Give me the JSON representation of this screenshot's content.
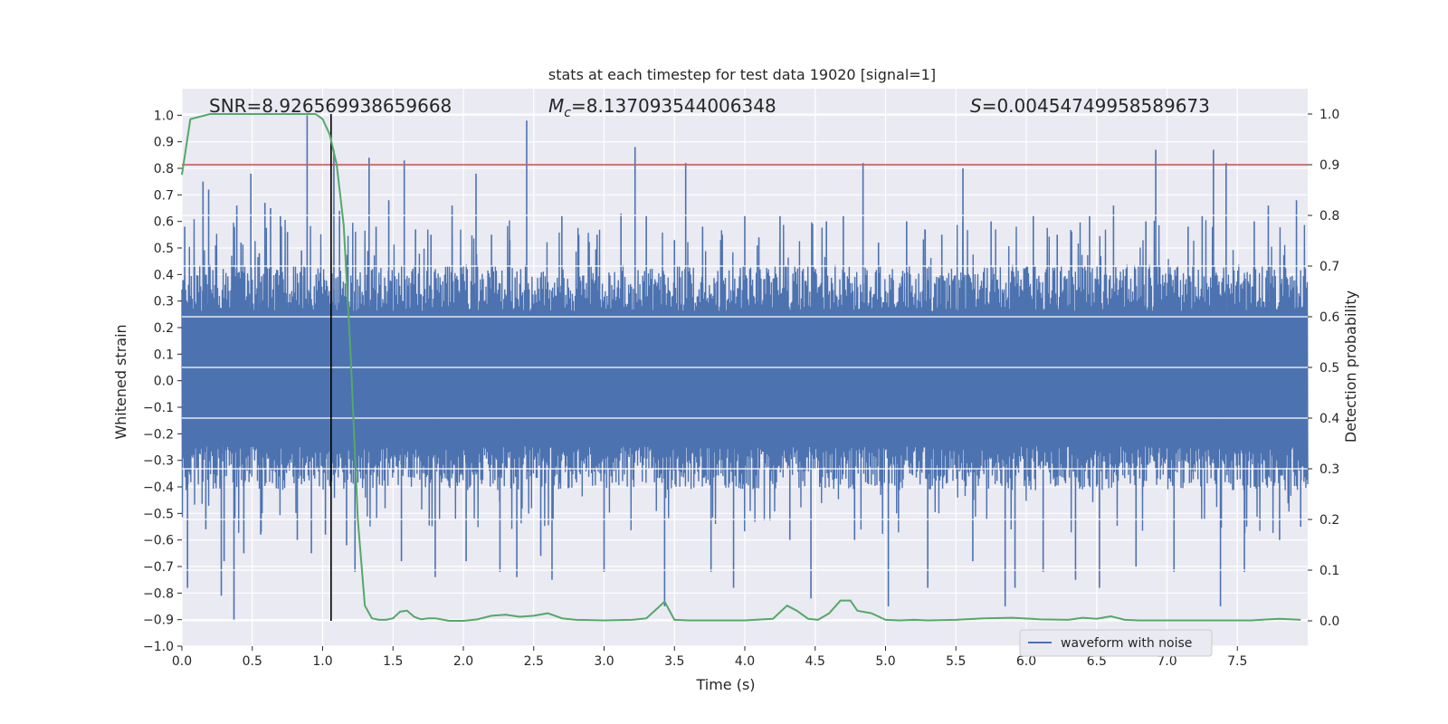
{
  "chart_data": {
    "type": "line",
    "title": "stats at each timestep for test data 19020 [signal=1]",
    "xlabel": "Time (s)",
    "ylabel": "Whitened strain",
    "y2label": "Detection probability",
    "xlim": [
      0.0,
      8.0
    ],
    "ylim": [
      -1.0,
      1.1
    ],
    "y2lim": [
      -0.05,
      1.05
    ],
    "x_ticks": [
      0.0,
      0.5,
      1.0,
      1.5,
      2.0,
      2.5,
      3.0,
      3.5,
      4.0,
      4.5,
      5.0,
      5.5,
      6.0,
      6.5,
      7.0,
      7.5
    ],
    "x_tick_labels": [
      "0.0",
      "0.5",
      "1.0",
      "1.5",
      "2.0",
      "2.5",
      "3.0",
      "3.5",
      "4.0",
      "4.5",
      "5.0",
      "5.5",
      "6.0",
      "6.5",
      "7.0",
      "7.5"
    ],
    "y_ticks": [
      1.0,
      0.9,
      0.8,
      0.7,
      0.6,
      0.5,
      0.4,
      0.3,
      0.2,
      0.1,
      0.0,
      -0.1,
      -0.2,
      -0.3,
      -0.4,
      -0.5,
      -0.6,
      -0.7,
      -0.8,
      -0.9,
      -1.0
    ],
    "y_tick_labels": [
      "1.0",
      "0.9",
      "0.8",
      "0.7",
      "0.6",
      "0.5",
      "0.4",
      "0.3",
      "0.2",
      "0.1",
      "0.0",
      "−0.1",
      "−0.2",
      "−0.3",
      "−0.4",
      "−0.5",
      "−0.6",
      "−0.7",
      "−0.8",
      "−0.9",
      "−1.0"
    ],
    "y2_ticks": [
      1.0,
      0.9,
      0.8,
      0.7,
      0.6,
      0.5,
      0.4,
      0.3,
      0.2,
      0.1,
      0.0
    ],
    "y2_tick_labels": [
      "1.0",
      "0.9",
      "0.8",
      "0.7",
      "0.6",
      "0.5",
      "0.4",
      "0.3",
      "0.2",
      "0.1",
      "0.0"
    ],
    "annotations": {
      "snr": "SNR=8.926569938659668",
      "mc_symbol": "M",
      "mc_sub": "c",
      "mc_value": "=8.137093544006348",
      "s_symbol": "S",
      "s_value": "=0.00454749958589673"
    },
    "legend": {
      "label": "waveform with noise",
      "position": "lower-right"
    },
    "threshold": {
      "value": 0.9,
      "axis": "right",
      "color": "#c44e52"
    },
    "marker_time": 1.06,
    "waveform": {
      "name": "waveform with noise",
      "color": "#4c72b0",
      "dense_envelope": [
        -0.33,
        0.35
      ],
      "seed": 19020,
      "count": 2400,
      "spikes": [
        {
          "t": 0.02,
          "v": 0.58
        },
        {
          "t": 0.04,
          "v": -0.78
        },
        {
          "t": 0.09,
          "v": 0.43
        },
        {
          "t": 0.15,
          "v": 0.75
        },
        {
          "t": 0.17,
          "v": -0.56
        },
        {
          "t": 0.19,
          "v": 0.72
        },
        {
          "t": 0.24,
          "v": 0.51
        },
        {
          "t": 0.28,
          "v": -0.81
        },
        {
          "t": 0.3,
          "v": -0.68
        },
        {
          "t": 0.37,
          "v": -0.9
        },
        {
          "t": 0.39,
          "v": 0.66
        },
        {
          "t": 0.42,
          "v": 0.52
        },
        {
          "t": 0.44,
          "v": -0.65
        },
        {
          "t": 0.49,
          "v": 0.78
        },
        {
          "t": 0.55,
          "v": 0.48
        },
        {
          "t": 0.56,
          "v": -0.58
        },
        {
          "t": 0.59,
          "v": 0.67
        },
        {
          "t": 0.63,
          "v": 0.65
        },
        {
          "t": 0.7,
          "v": 0.62
        },
        {
          "t": 0.75,
          "v": 0.56
        },
        {
          "t": 0.82,
          "v": -0.6
        },
        {
          "t": 0.85,
          "v": 0.49
        },
        {
          "t": 0.89,
          "v": 1.0
        },
        {
          "t": 0.92,
          "v": -0.65
        },
        {
          "t": 1.02,
          "v": -0.58
        },
        {
          "t": 1.08,
          "v": 0.87
        },
        {
          "t": 1.12,
          "v": 0.64
        },
        {
          "t": 1.17,
          "v": -0.62
        },
        {
          "t": 1.23,
          "v": -0.72
        },
        {
          "t": 1.33,
          "v": 0.84
        },
        {
          "t": 1.38,
          "v": 0.58
        },
        {
          "t": 1.47,
          "v": 0.68
        },
        {
          "t": 1.56,
          "v": -0.68
        },
        {
          "t": 1.58,
          "v": 0.83
        },
        {
          "t": 1.66,
          "v": 0.57
        },
        {
          "t": 1.77,
          "v": 0.55
        },
        {
          "t": 1.8,
          "v": -0.74
        },
        {
          "t": 1.92,
          "v": 0.66
        },
        {
          "t": 2.02,
          "v": -0.68
        },
        {
          "t": 2.09,
          "v": 0.78
        },
        {
          "t": 2.2,
          "v": 0.55
        },
        {
          "t": 2.26,
          "v": -0.72
        },
        {
          "t": 2.33,
          "v": 0.53
        },
        {
          "t": 2.38,
          "v": -0.74
        },
        {
          "t": 2.45,
          "v": 0.98
        },
        {
          "t": 2.55,
          "v": -0.66
        },
        {
          "t": 2.63,
          "v": -0.75
        },
        {
          "t": 2.7,
          "v": 0.62
        },
        {
          "t": 2.82,
          "v": 0.55
        },
        {
          "t": 2.95,
          "v": 0.55
        },
        {
          "t": 3.0,
          "v": -0.72
        },
        {
          "t": 3.12,
          "v": 0.63
        },
        {
          "t": 3.22,
          "v": 0.88
        },
        {
          "t": 3.3,
          "v": 0.62
        },
        {
          "t": 3.43,
          "v": -0.85
        },
        {
          "t": 3.5,
          "v": 0.53
        },
        {
          "t": 3.58,
          "v": 0.82
        },
        {
          "t": 3.7,
          "v": 0.58
        },
        {
          "t": 3.76,
          "v": -0.72
        },
        {
          "t": 3.84,
          "v": 0.55
        },
        {
          "t": 3.92,
          "v": -0.78
        },
        {
          "t": 4.0,
          "v": 0.62
        },
        {
          "t": 4.1,
          "v": 0.54
        },
        {
          "t": 4.25,
          "v": 0.62
        },
        {
          "t": 4.32,
          "v": -0.6
        },
        {
          "t": 4.47,
          "v": -0.82
        },
        {
          "t": 4.58,
          "v": 0.6
        },
        {
          "t": 4.7,
          "v": 0.62
        },
        {
          "t": 4.78,
          "v": -0.6
        },
        {
          "t": 4.84,
          "v": 0.82
        },
        {
          "t": 4.95,
          "v": 0.52
        },
        {
          "t": 5.02,
          "v": -0.85
        },
        {
          "t": 5.15,
          "v": 0.6
        },
        {
          "t": 5.28,
          "v": 0.57
        },
        {
          "t": 5.3,
          "v": -0.78
        },
        {
          "t": 5.4,
          "v": 0.55
        },
        {
          "t": 5.55,
          "v": 0.8
        },
        {
          "t": 5.62,
          "v": -0.68
        },
        {
          "t": 5.75,
          "v": 0.6
        },
        {
          "t": 5.85,
          "v": -0.85
        },
        {
          "t": 5.92,
          "v": -0.78
        },
        {
          "t": 6.05,
          "v": 0.62
        },
        {
          "t": 6.12,
          "v": -0.72
        },
        {
          "t": 6.22,
          "v": 0.55
        },
        {
          "t": 6.35,
          "v": -0.75
        },
        {
          "t": 6.45,
          "v": 0.62
        },
        {
          "t": 6.52,
          "v": -0.78
        },
        {
          "t": 6.62,
          "v": 0.66
        },
        {
          "t": 6.78,
          "v": -0.7
        },
        {
          "t": 6.85,
          "v": 0.6
        },
        {
          "t": 6.92,
          "v": 0.87
        },
        {
          "t": 7.05,
          "v": -0.72
        },
        {
          "t": 7.15,
          "v": 0.58
        },
        {
          "t": 7.25,
          "v": 0.62
        },
        {
          "t": 7.33,
          "v": 0.87
        },
        {
          "t": 7.38,
          "v": -0.85
        },
        {
          "t": 7.42,
          "v": 0.82
        },
        {
          "t": 7.55,
          "v": -0.72
        },
        {
          "t": 7.62,
          "v": 0.6
        },
        {
          "t": 7.72,
          "v": 0.66
        },
        {
          "t": 7.8,
          "v": -0.6
        },
        {
          "t": 7.92,
          "v": 0.68
        },
        {
          "t": 7.95,
          "v": -0.55
        }
      ]
    },
    "probability": {
      "name": "detection probability",
      "color": "#55a868",
      "x": [
        0.0,
        0.06,
        0.2,
        0.4,
        0.6,
        0.8,
        0.9,
        0.95,
        1.0,
        1.05,
        1.1,
        1.15,
        1.2,
        1.25,
        1.3,
        1.35,
        1.4,
        1.45,
        1.5,
        1.55,
        1.6,
        1.65,
        1.7,
        1.75,
        1.8,
        1.9,
        2.0,
        2.1,
        2.2,
        2.3,
        2.4,
        2.5,
        2.6,
        2.7,
        2.8,
        3.0,
        3.2,
        3.3,
        3.38,
        3.43,
        3.5,
        3.6,
        3.8,
        4.0,
        4.2,
        4.3,
        4.37,
        4.45,
        4.52,
        4.6,
        4.68,
        4.75,
        4.8,
        4.9,
        5.0,
        5.1,
        5.2,
        5.3,
        5.5,
        5.7,
        5.9,
        6.1,
        6.3,
        6.4,
        6.5,
        6.6,
        6.7,
        6.8,
        7.0,
        7.2,
        7.4,
        7.6,
        7.8,
        7.95
      ],
      "y": [
        0.88,
        0.99,
        1.0,
        1.0,
        1.0,
        1.0,
        1.0,
        1.0,
        0.99,
        0.96,
        0.9,
        0.78,
        0.52,
        0.2,
        0.03,
        0.005,
        0.002,
        0.002,
        0.005,
        0.018,
        0.02,
        0.008,
        0.003,
        0.005,
        0.005,
        0.0,
        0.0,
        0.003,
        0.01,
        0.012,
        0.008,
        0.01,
        0.015,
        0.005,
        0.002,
        0.001,
        0.002,
        0.005,
        0.025,
        0.038,
        0.002,
        0.001,
        0.001,
        0.001,
        0.004,
        0.03,
        0.02,
        0.004,
        0.002,
        0.015,
        0.04,
        0.04,
        0.02,
        0.015,
        0.002,
        0.001,
        0.002,
        0.001,
        0.002,
        0.005,
        0.006,
        0.003,
        0.002,
        0.006,
        0.004,
        0.009,
        0.002,
        0.001,
        0.001,
        0.001,
        0.001,
        0.001,
        0.004,
        0.002
      ]
    }
  }
}
